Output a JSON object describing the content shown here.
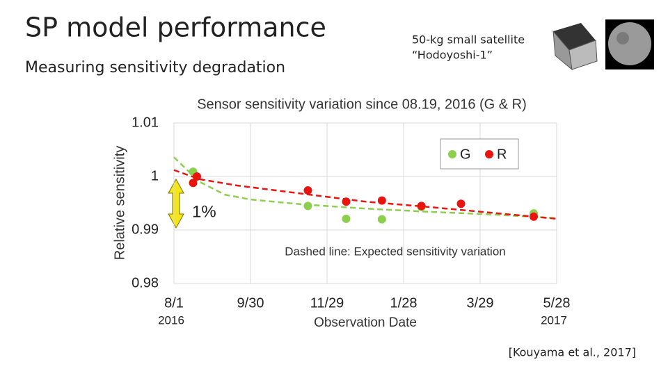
{
  "slide": {
    "title": "SP model performance",
    "subtitle": "Measuring sensitivity degradation",
    "satellite_line1": "50-kg small satellite",
    "satellite_line2": "“Hodoyoshi-1”",
    "citation": "[Kouyama et al., 2017]"
  },
  "chart_data": {
    "type": "scatter",
    "title": "Sensor sensitivity variation since 08.19, 2016 (G & R)",
    "x_label": "Observation Date",
    "y_label": "Relative sensitivity",
    "xlim": [
      0,
      300
    ],
    "ylim": [
      0.98,
      1.01
    ],
    "xticks": [
      {
        "value": 0,
        "label": "8/1"
      },
      {
        "value": 60,
        "label": "9/30"
      },
      {
        "value": 120,
        "label": "11/29"
      },
      {
        "value": 180,
        "label": "1/28"
      },
      {
        "value": 240,
        "label": "3/29"
      },
      {
        "value": 300,
        "label": "5/28"
      }
    ],
    "x_year_labels": [
      {
        "value": 0,
        "label": "2016"
      },
      {
        "value": 300,
        "label": "2017"
      }
    ],
    "yticks": [
      1.01,
      1,
      0.99,
      0.98
    ],
    "grid": true,
    "series": [
      {
        "name": "G",
        "color": "#8ccf4d",
        "x": [
          15,
          105,
          135,
          163,
          194,
          282
        ],
        "values": [
          1.0009,
          0.9945,
          0.9921,
          0.992,
          0.9943,
          0.9931
        ]
      },
      {
        "name": "R",
        "color": "#e8140f",
        "x": [
          15,
          18,
          105,
          135,
          163,
          194,
          225,
          282
        ],
        "values": [
          0.9988,
          1.0,
          0.9974,
          0.9953,
          0.9955,
          0.9945,
          0.9949,
          0.9925
        ]
      }
    ],
    "fits": [
      {
        "color": "#8ccf4d",
        "x": [
          0,
          20,
          40,
          60,
          100,
          150,
          200,
          250,
          300
        ],
        "values": [
          1.0036,
          0.999,
          0.9966,
          0.9957,
          0.9948,
          0.994,
          0.9934,
          0.9929,
          0.9922
        ]
      },
      {
        "color": "#e8140f",
        "x": [
          0,
          20,
          50,
          100,
          150,
          200,
          250,
          300
        ],
        "values": [
          1.0012,
          0.9995,
          0.9983,
          0.9968,
          0.9953,
          0.9943,
          0.9932,
          0.9921
        ]
      }
    ],
    "legend": "upper right",
    "annotations": {
      "span_label": "1%",
      "note": "Dashed line: Expected sensitivity variation"
    }
  }
}
